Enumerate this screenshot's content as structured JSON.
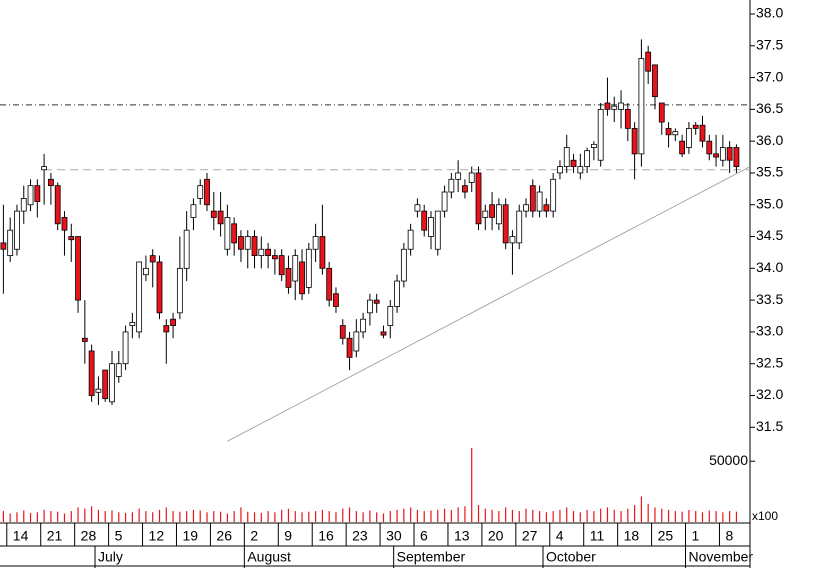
{
  "chart_data": {
    "type": "candlestick",
    "up_color": "#ffffff",
    "down_color": "#e8141c",
    "open": [
      34.4,
      34.2,
      34.3,
      34.9,
      35.0,
      35.3,
      35.55,
      35.4,
      35.3,
      34.8,
      34.5,
      34.5,
      32.9,
      32.7,
      32.05,
      32.4,
      31.9,
      32.3,
      32.5,
      33.1,
      33.0,
      33.9,
      34.2,
      34.1,
      33.1,
      33.2,
      33.3,
      34.0,
      34.8,
      35.1,
      35.4,
      34.9,
      34.9,
      34.3,
      34.7,
      34.5,
      34.3,
      34.5,
      34.2,
      34.3,
      34.2,
      34.2,
      34.0,
      33.8,
      34.1,
      33.7,
      34.3,
      34.5,
      34.0,
      33.6,
      33.1,
      32.9,
      32.7,
      33.0,
      33.3,
      33.5,
      33.0,
      33.1,
      33.4,
      33.8,
      34.3,
      34.9,
      34.9,
      34.5,
      34.3,
      34.9,
      35.2,
      35.4,
      35.3,
      35.35,
      35.5,
      34.8,
      35.0,
      34.7,
      35.0,
      34.4,
      34.4,
      34.9,
      35.3,
      34.9,
      35.0,
      34.9,
      35.5,
      35.6,
      35.7,
      35.5,
      35.6,
      35.9,
      35.7,
      36.6,
      36.5,
      36.5,
      36.5,
      36.2,
      35.8,
      37.4,
      37.2,
      36.6,
      36.2,
      36.1,
      36.0,
      35.9,
      36.25,
      36.25,
      36.0,
      35.8,
      35.7,
      35.9,
      35.9
    ],
    "high": [
      35.0,
      34.8,
      35.0,
      35.3,
      35.4,
      35.4,
      35.8,
      35.5,
      35.35,
      34.9,
      34.7,
      34.5,
      33.5,
      32.8,
      32.3,
      32.4,
      32.7,
      32.7,
      33.1,
      33.3,
      34.1,
      34.2,
      34.3,
      34.2,
      33.2,
      33.3,
      34.5,
      34.9,
      35.1,
      35.4,
      35.5,
      35.2,
      35.2,
      35.0,
      34.8,
      34.6,
      34.6,
      34.6,
      34.5,
      34.4,
      34.3,
      34.3,
      34.2,
      34.3,
      34.3,
      34.4,
      34.7,
      35.0,
      34.1,
      33.7,
      33.2,
      33.0,
      33.2,
      33.3,
      33.6,
      33.6,
      33.1,
      33.5,
      33.9,
      34.4,
      34.7,
      35.1,
      35.0,
      34.9,
      34.9,
      35.3,
      35.5,
      35.7,
      35.4,
      35.6,
      35.6,
      35.0,
      35.2,
      35.1,
      35.1,
      34.6,
      35.0,
      35.1,
      35.4,
      35.3,
      35.1,
      35.5,
      35.7,
      36.1,
      35.8,
      35.8,
      35.9,
      36.0,
      36.6,
      37.0,
      36.7,
      36.8,
      36.6,
      36.3,
      37.6,
      37.5,
      37.2,
      36.6,
      36.3,
      36.2,
      36.1,
      36.3,
      36.3,
      36.4,
      36.1,
      36.1,
      36.1,
      36.0,
      35.95
    ],
    "low": [
      33.6,
      34.1,
      34.2,
      34.7,
      34.9,
      34.8,
      35.0,
      35.0,
      34.6,
      34.2,
      34.1,
      33.3,
      32.5,
      31.9,
      31.85,
      31.9,
      31.85,
      32.2,
      32.4,
      32.9,
      32.9,
      33.8,
      33.7,
      33.2,
      32.5,
      32.9,
      33.2,
      33.8,
      34.6,
      35.0,
      34.9,
      34.6,
      34.5,
      34.2,
      34.2,
      34.1,
      34.0,
      34.0,
      34.0,
      34.0,
      33.9,
      33.8,
      33.6,
      33.5,
      33.5,
      33.6,
      34.1,
      33.9,
      33.4,
      33.3,
      32.8,
      32.4,
      32.6,
      32.9,
      33.1,
      33.3,
      32.9,
      32.9,
      33.3,
      33.7,
      34.2,
      34.8,
      34.5,
      34.3,
      34.2,
      34.8,
      35.1,
      35.2,
      35.1,
      35.2,
      34.6,
      34.6,
      34.6,
      34.6,
      34.3,
      33.9,
      34.3,
      34.8,
      34.8,
      34.8,
      34.8,
      34.8,
      35.4,
      35.5,
      35.5,
      35.4,
      35.5,
      35.7,
      35.6,
      36.4,
      36.3,
      36.2,
      36.0,
      35.4,
      35.6,
      36.9,
      36.5,
      36.1,
      35.9,
      36.0,
      35.75,
      35.8,
      36.1,
      35.9,
      35.7,
      35.6,
      35.6,
      35.5,
      35.5
    ],
    "close": [
      34.3,
      34.6,
      34.9,
      35.1,
      35.3,
      35.05,
      35.6,
      35.3,
      34.7,
      34.6,
      34.45,
      33.5,
      32.85,
      32.0,
      32.1,
      31.95,
      32.5,
      32.5,
      33.0,
      33.15,
      34.1,
      34.0,
      34.1,
      33.3,
      33.0,
      33.1,
      34.0,
      34.6,
      35.0,
      35.3,
      35.0,
      34.8,
      34.7,
      34.8,
      34.4,
      34.3,
      34.5,
      34.2,
      34.3,
      34.2,
      34.15,
      33.9,
      33.7,
      34.2,
      33.6,
      34.3,
      34.5,
      34.0,
      33.5,
      33.4,
      32.9,
      32.6,
      33.0,
      33.2,
      33.5,
      33.45,
      32.95,
      33.4,
      33.8,
      34.3,
      34.6,
      35.0,
      34.6,
      34.8,
      34.9,
      35.2,
      35.4,
      35.5,
      35.2,
      35.5,
      34.7,
      34.9,
      34.8,
      35.0,
      34.4,
      34.5,
      34.9,
      35.0,
      34.9,
      35.2,
      34.9,
      35.4,
      35.6,
      35.9,
      35.6,
      35.6,
      35.85,
      35.95,
      36.5,
      36.5,
      36.55,
      36.6,
      36.2,
      35.8,
      37.3,
      37.1,
      36.7,
      36.3,
      36.1,
      36.15,
      35.8,
      36.2,
      36.2,
      36.0,
      35.8,
      35.75,
      35.9,
      35.7,
      35.6
    ],
    "volume": [
      9000,
      7000,
      8000,
      9500,
      7500,
      8000,
      10000,
      9000,
      8500,
      7000,
      9000,
      12000,
      11000,
      13000,
      10000,
      9000,
      9500,
      8000,
      7500,
      8000,
      11000,
      9000,
      8000,
      10000,
      12000,
      9000,
      8500,
      9000,
      10000,
      9500,
      8000,
      9000,
      8500,
      7000,
      9000,
      12000,
      8500,
      8000,
      7500,
      9000,
      8000,
      10000,
      11000,
      9000,
      8000,
      8500,
      9000,
      10000,
      9000,
      8000,
      11000,
      12000,
      9000,
      8000,
      9500,
      8000,
      7000,
      9000,
      10000,
      11000,
      12000,
      10000,
      9000,
      9500,
      10000,
      11000,
      10000,
      12000,
      13000,
      61000,
      14000,
      11000,
      10000,
      9000,
      12000,
      10000,
      9000,
      11000,
      10000,
      9000,
      8000,
      9000,
      10000,
      12000,
      9000,
      8000,
      10000,
      9000,
      11000,
      12000,
      10000,
      9000,
      11000,
      14000,
      21000,
      15000,
      12000,
      11000,
      10000,
      9000,
      8500,
      10000,
      9000,
      8000,
      9500,
      9000,
      8000,
      9000,
      8500
    ],
    "ylim": [
      31.3,
      38.22
    ],
    "yticks": [
      31.5,
      {
        "value": 32,
        "label": "32.0"
      },
      32.5,
      {
        "value": 33,
        "label": "33.0"
      },
      33.5,
      {
        "value": 34,
        "label": "34.0"
      },
      34.5,
      {
        "value": 35,
        "label": "35.0"
      },
      35.5,
      {
        "value": 36,
        "label": "36.0"
      },
      36.5,
      {
        "value": 37,
        "label": "37.0"
      },
      37.5,
      {
        "value": 38,
        "label": "38.0"
      }
    ],
    "volume_lim": [
      0,
      65000
    ],
    "volume_ticks": [
      50000
    ],
    "volume_unit": "x100",
    "xlim": [
      -0.5,
      110
    ],
    "xticks": [
      {
        "value": 1,
        "label": "14"
      },
      {
        "value": 6,
        "label": "21"
      },
      {
        "value": 11,
        "label": "28"
      },
      {
        "value": 16,
        "label": "5"
      },
      {
        "value": 21,
        "label": "12"
      },
      {
        "value": 26,
        "label": "19"
      },
      {
        "value": 31,
        "label": "26"
      },
      {
        "value": 36,
        "label": "2"
      },
      {
        "value": 41,
        "label": "9"
      },
      {
        "value": 46,
        "label": "16"
      },
      {
        "value": 51,
        "label": "23"
      },
      {
        "value": 56,
        "label": "30"
      },
      {
        "value": 61,
        "label": "6"
      },
      {
        "value": 66,
        "label": "13"
      },
      {
        "value": 71,
        "label": "20"
      },
      {
        "value": 76,
        "label": "27"
      },
      {
        "value": 81,
        "label": "4"
      },
      {
        "value": 86,
        "label": "11"
      },
      {
        "value": 91,
        "label": "18"
      },
      {
        "value": 96,
        "label": "25"
      },
      {
        "value": 101,
        "label": "1"
      },
      {
        "value": 106,
        "label": "8"
      }
    ],
    "month_ticks": [
      {
        "value": 14,
        "label": "July"
      },
      {
        "value": 36,
        "label": "August"
      },
      {
        "value": 58,
        "label": "September"
      },
      {
        "value": 80,
        "label": "October"
      },
      {
        "value": 101,
        "label": "November"
      }
    ],
    "hlines": [
      36.57,
      35.55
    ],
    "trendline": {
      "x": [
        33,
        110
      ],
      "y": [
        31.28,
        35.6
      ]
    }
  }
}
